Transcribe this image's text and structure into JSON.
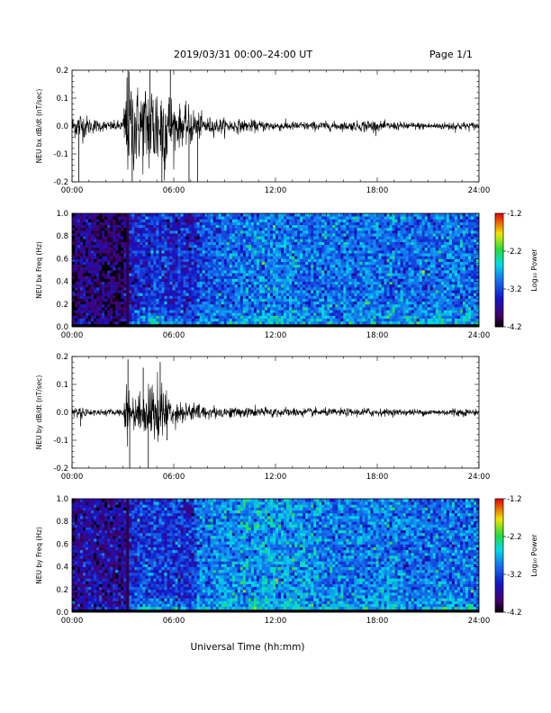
{
  "header": {
    "title": "2019/03/31  00:00–24:00 UT",
    "page": "Page 1/1"
  },
  "footer": {
    "xlabel": "Universal Time (hh:mm)"
  },
  "chart_data": [
    {
      "type": "line",
      "ylabel": "NEU bx dB/dt (nT/sec)",
      "xlabel": "",
      "x_unit": "hours UT",
      "xlim": [
        0,
        24
      ],
      "ylim": [
        -0.2,
        0.2
      ],
      "xticks": [
        "00:00",
        "06:00",
        "12:00",
        "18:00",
        "24:00"
      ],
      "yticks": [
        "-0.2",
        "-0.1",
        "0.0",
        "0.1",
        "0.2"
      ],
      "series": [
        {
          "color": "#000000",
          "envelope_hours": [
            0,
            0.5,
            1,
            1.5,
            2,
            2.5,
            3,
            3.2,
            3.5,
            4,
            4.5,
            5,
            5.5,
            6,
            6.5,
            7,
            7.5,
            8,
            9,
            10,
            11,
            12,
            13,
            14,
            15,
            16,
            17,
            17.5,
            18,
            19,
            20,
            21,
            22,
            22.5,
            23,
            24
          ],
          "envelope_amplitude": [
            0.04,
            0.06,
            0.035,
            0.025,
            0.02,
            0.02,
            0.025,
            0.2,
            0.2,
            0.15,
            0.2,
            0.2,
            0.2,
            0.1,
            0.07,
            0.08,
            0.05,
            0.035,
            0.03,
            0.025,
            0.022,
            0.02,
            0.018,
            0.018,
            0.018,
            0.017,
            0.02,
            0.03,
            0.018,
            0.016,
            0.015,
            0.015,
            0.015,
            0.02,
            0.017,
            0.015
          ],
          "spikes": [
            {
              "x": 0.4,
              "y": -0.2
            },
            {
              "x": 3.3,
              "y": 0.2
            },
            {
              "x": 3.55,
              "y": -0.2
            },
            {
              "x": 4.6,
              "y": 0.2
            },
            {
              "x": 5.3,
              "y": -0.2
            },
            {
              "x": 6.9,
              "y": -0.2
            },
            {
              "x": 7.4,
              "y": -0.2
            },
            {
              "x": 5.8,
              "y": 0.2
            }
          ]
        }
      ]
    },
    {
      "type": "heatmap",
      "ylabel": "NEU bx Freq (Hz)",
      "xlabel": "",
      "xlim": [
        0,
        24
      ],
      "ylim": [
        0,
        1.0
      ],
      "xticks": [
        "00:00",
        "06:00",
        "12:00",
        "18:00",
        "24:00"
      ],
      "yticks": [
        "0.0",
        "0.2",
        "0.4",
        "0.6",
        "0.8",
        "1.0"
      ],
      "colorbar": {
        "label": "Log₁₀ Power",
        "range": [
          -4.2,
          -1.2
        ],
        "ticks": [
          "-1.2",
          "-2.2",
          "-3.2",
          "-4.2"
        ]
      },
      "hour_knots": [
        0,
        1,
        2,
        3,
        3.3,
        4,
        5,
        6,
        7,
        7.5,
        8,
        10,
        12,
        14,
        16,
        18,
        20,
        22,
        24
      ],
      "mean_log_power": [
        -3.9,
        -3.8,
        -3.9,
        -3.95,
        -3.5,
        -3.4,
        -3.3,
        -3.4,
        -3.5,
        -3.2,
        -3.1,
        -3.0,
        -2.95,
        -3.0,
        -3.0,
        -3.0,
        -3.05,
        -3.0,
        -3.05
      ],
      "lowfreq_boost": [
        0.3,
        0.3,
        0.3,
        0.2,
        0.5,
        0.8,
        1.0,
        0.9,
        0.6,
        0.5,
        0.4,
        0.4,
        0.4,
        0.4,
        0.4,
        0.4,
        0.5,
        0.6,
        0.6
      ]
    },
    {
      "type": "line",
      "ylabel": "NEU by dB/dt (nT/sec)",
      "xlabel": "",
      "x_unit": "hours UT",
      "xlim": [
        0,
        24
      ],
      "ylim": [
        -0.2,
        0.2
      ],
      "xticks": [
        "00:00",
        "06:00",
        "12:00",
        "18:00",
        "24:00"
      ],
      "yticks": [
        "-0.2",
        "-0.1",
        "0.0",
        "0.1",
        "0.2"
      ],
      "series": [
        {
          "color": "#000000",
          "envelope_hours": [
            0,
            0.5,
            1,
            1.5,
            2,
            2.5,
            3,
            3.2,
            3.5,
            4,
            4.5,
            5,
            5.5,
            6,
            6.5,
            7,
            7.5,
            8,
            9,
            10,
            11,
            12,
            13,
            14,
            15,
            16,
            17,
            17.5,
            18,
            19,
            20,
            21,
            22,
            22.5,
            23,
            24
          ],
          "envelope_amplitude": [
            0.015,
            0.025,
            0.015,
            0.012,
            0.012,
            0.012,
            0.015,
            0.12,
            0.06,
            0.08,
            0.1,
            0.14,
            0.1,
            0.05,
            0.04,
            0.04,
            0.035,
            0.025,
            0.022,
            0.02,
            0.02,
            0.02,
            0.017,
            0.017,
            0.015,
            0.015,
            0.015,
            0.02,
            0.015,
            0.013,
            0.013,
            0.013,
            0.013,
            0.02,
            0.015,
            0.013
          ],
          "spikes": [
            {
              "x": 0.5,
              "y": -0.05
            },
            {
              "x": 3.3,
              "y": 0.19
            },
            {
              "x": 3.4,
              "y": -0.2
            },
            {
              "x": 4.5,
              "y": -0.2
            },
            {
              "x": 5.2,
              "y": 0.18
            },
            {
              "x": 5.6,
              "y": -0.1
            },
            {
              "x": 4.2,
              "y": 0.16
            }
          ]
        }
      ]
    },
    {
      "type": "heatmap",
      "ylabel": "NEU by Freq (Hz)",
      "xlabel": "Universal Time (hh:mm)",
      "xlim": [
        0,
        24
      ],
      "ylim": [
        0,
        1.0
      ],
      "xticks": [
        "00:00",
        "06:00",
        "12:00",
        "18:00",
        "24:00"
      ],
      "yticks": [
        "0.0",
        "0.2",
        "0.4",
        "0.6",
        "0.8",
        "1.0"
      ],
      "colorbar": {
        "label": "Log₁₀ Power",
        "range": [
          -4.2,
          -1.2
        ],
        "ticks": [
          "-1.2",
          "-2.2",
          "-3.2",
          "-4.2"
        ]
      },
      "hour_knots": [
        0,
        1,
        2,
        3,
        3.3,
        4,
        5,
        6,
        7,
        7.5,
        8,
        10,
        12,
        14,
        16,
        18,
        20,
        22,
        24
      ],
      "mean_log_power": [
        -3.7,
        -3.6,
        -3.7,
        -3.75,
        -3.4,
        -3.3,
        -3.25,
        -3.3,
        -3.4,
        -3.0,
        -2.95,
        -2.85,
        -2.8,
        -2.9,
        -2.95,
        -2.95,
        -3.0,
        -3.0,
        -3.05
      ],
      "lowfreq_boost": [
        0.3,
        0.3,
        0.3,
        0.2,
        0.5,
        0.8,
        1.0,
        0.9,
        0.6,
        0.5,
        0.4,
        0.4,
        0.4,
        0.4,
        0.4,
        0.4,
        0.5,
        0.6,
        0.6
      ]
    }
  ]
}
